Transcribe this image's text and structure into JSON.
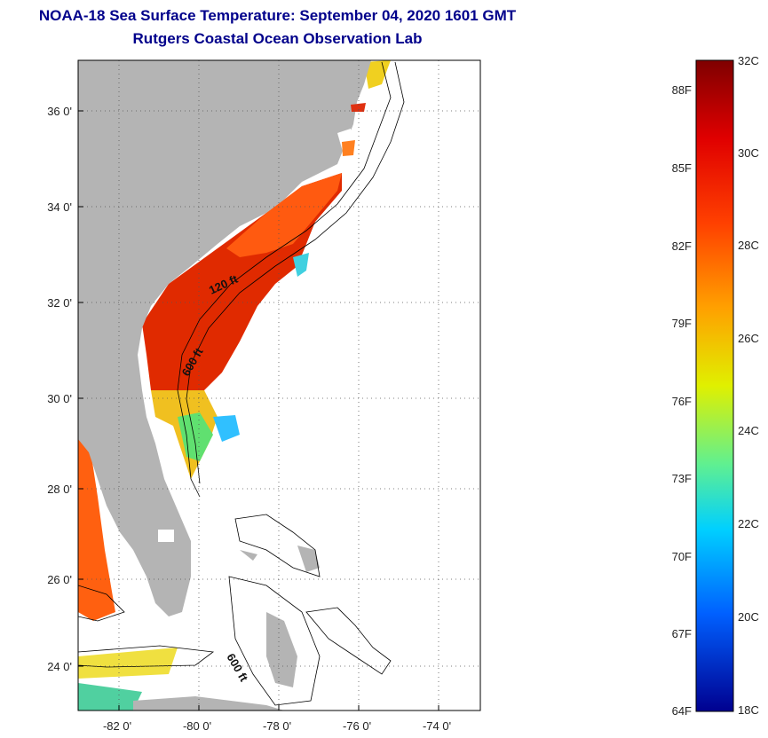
{
  "title": "NOAA-18 Sea Surface Temperature:  September 04, 2020 1601 GMT",
  "subtitle": "Rutgers Coastal Ocean Observation Lab",
  "map": {
    "lon_range": [
      -83,
      -73
    ],
    "lat_range": [
      23,
      37.1
    ],
    "x_ticks": [
      "-82 0'",
      "-80 0'",
      "-78 0'",
      "-76 0'",
      "-74 0'"
    ],
    "y_ticks": [
      "36 0'",
      "34 0'",
      "32 0'",
      "30 0'",
      "28 0'",
      "26 0'",
      "24 0'"
    ],
    "grid": "dotted",
    "contour_labels": [
      "120 ft",
      "600 ft",
      "600 ft"
    ]
  },
  "colorbar": {
    "celsius_labels": [
      "32C",
      "30C",
      "28C",
      "26C",
      "24C",
      "22C",
      "20C",
      "18C"
    ],
    "fahrenheit_labels": [
      "88F",
      "85F",
      "82F",
      "79F",
      "76F",
      "73F",
      "70F",
      "67F",
      "64F"
    ],
    "colors": [
      "#7f0000",
      "#ff0000",
      "#ff8000",
      "#ffff00",
      "#80ff80",
      "#00ffff",
      "#0080ff",
      "#0000ff",
      "#00008f"
    ]
  },
  "colors": {
    "land": "#b4b4b4",
    "ocean": "#ffffff",
    "title": "#00008b"
  }
}
